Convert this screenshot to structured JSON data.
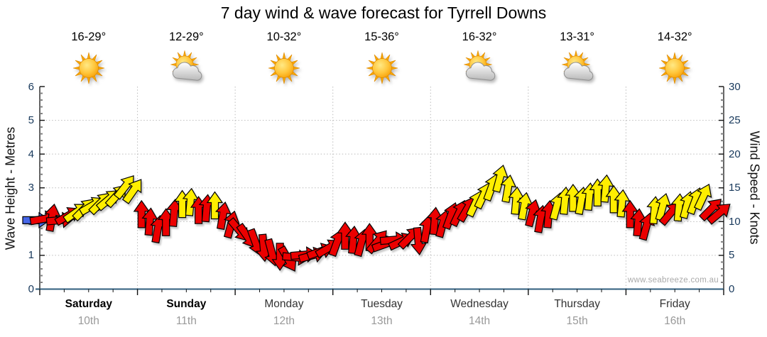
{
  "title": "7 day wind & wave forecast for Tyrrell Downs",
  "watermark": "www.seabreeze.com.au",
  "left_axis": {
    "title": "Wave Height - Metres",
    "ticks": [
      "6",
      "5",
      "4",
      "3",
      "2",
      "1",
      "0"
    ],
    "min": 0,
    "max": 6
  },
  "right_axis": {
    "title": "Wind Speed - Knots",
    "ticks": [
      "30",
      "25",
      "20",
      "15",
      "10",
      "5",
      "0"
    ],
    "min": 0,
    "max": 30
  },
  "days": [
    {
      "name": "Saturday",
      "date": "10th",
      "temp": "16-29°",
      "icon": "sun",
      "weekend": true
    },
    {
      "name": "Sunday",
      "date": "11th",
      "temp": "12-29°",
      "icon": "sun-cloud",
      "weekend": true
    },
    {
      "name": "Monday",
      "date": "12th",
      "temp": "10-32°",
      "icon": "sun",
      "weekend": false
    },
    {
      "name": "Tuesday",
      "date": "13th",
      "temp": "15-36°",
      "icon": "sun",
      "weekend": false
    },
    {
      "name": "Wednesday",
      "date": "14th",
      "temp": "16-32°",
      "icon": "sun-cloud",
      "weekend": false
    },
    {
      "name": "Thursday",
      "date": "15th",
      "temp": "13-31°",
      "icon": "sun-cloud",
      "weekend": false
    },
    {
      "name": "Friday",
      "date": "16th",
      "temp": "14-32°",
      "icon": "sun",
      "weekend": false
    }
  ],
  "colors": {
    "arrow_red": "#EB0000",
    "arrow_yellow": "#FFEE00",
    "arrow_blue": "#4666E8",
    "arrow_outline": "#000000",
    "bottom_axis": "#2F5E7E",
    "side_axis": "#222222",
    "tick_major": "#111111",
    "tick_minor": "#808080",
    "grid": "#BBBBBB",
    "axis_number": "#17385B",
    "day_name": "#333333",
    "day_date": "#999999",
    "watermark": "#AAAAAA"
  },
  "chart_data": {
    "type": "wind-arrow-forecast",
    "title": "7 day wind & wave forecast for Tyrrell Downs",
    "x_categories": [
      "Saturday 10th",
      "Sunday 11th",
      "Monday 12th",
      "Tuesday 13th",
      "Wednesday 14th",
      "Thursday 15th",
      "Friday 16th"
    ],
    "arrows_per_day": 12,
    "y_left_label": "Wave Height - Metres",
    "y_left_range": [
      0,
      6
    ],
    "y_right_label": "Wind Speed - Knots",
    "y_right_range": [
      0,
      30
    ],
    "grid": "dotted, horizontal every 5 knots, vertical at day boundaries",
    "legend": "arrow colour encodes wind strength: red = lighter, yellow = stronger; arrow rotation = wind direction (0 = toward top/N)",
    "arrows_knots_dir_color": [
      [
        10.4,
        80,
        "r"
      ],
      [
        10.6,
        10,
        "r"
      ],
      [
        10.2,
        85,
        "r"
      ],
      [
        10.9,
        60,
        "r"
      ],
      [
        11.4,
        55,
        "y"
      ],
      [
        11.9,
        45,
        "y"
      ],
      [
        12.4,
        60,
        "y"
      ],
      [
        12.8,
        45,
        "y"
      ],
      [
        13.3,
        50,
        "y"
      ],
      [
        13.9,
        42,
        "y"
      ],
      [
        15.2,
        38,
        "y"
      ],
      [
        14.6,
        35,
        "y"
      ],
      [
        11.1,
        0,
        "r"
      ],
      [
        10.0,
        5,
        "r"
      ],
      [
        8.9,
        10,
        "r"
      ],
      [
        9.9,
        0,
        "r"
      ],
      [
        11.3,
        5,
        "r"
      ],
      [
        12.6,
        0,
        "y"
      ],
      [
        12.9,
        5,
        "y"
      ],
      [
        11.7,
        0,
        "r"
      ],
      [
        12.0,
        5,
        "r"
      ],
      [
        12.4,
        0,
        "y"
      ],
      [
        10.9,
        10,
        "r"
      ],
      [
        9.6,
        15,
        "r"
      ],
      [
        8.7,
        140,
        "r"
      ],
      [
        7.8,
        145,
        "r"
      ],
      [
        6.9,
        160,
        "r"
      ],
      [
        6.1,
        175,
        "r"
      ],
      [
        5.4,
        165,
        "r"
      ],
      [
        4.8,
        180,
        "r"
      ],
      [
        4.4,
        150,
        "r"
      ],
      [
        4.7,
        95,
        "r"
      ],
      [
        5.1,
        85,
        "r"
      ],
      [
        5.0,
        75,
        "r"
      ],
      [
        5.6,
        70,
        "r"
      ],
      [
        6.1,
        60,
        "r"
      ],
      [
        6.9,
        20,
        "r"
      ],
      [
        7.9,
        0,
        "r"
      ],
      [
        7.3,
        5,
        "r"
      ],
      [
        6.9,
        15,
        "r"
      ],
      [
        7.7,
        0,
        "r"
      ],
      [
        7.1,
        40,
        "r"
      ],
      [
        6.7,
        70,
        "r"
      ],
      [
        7.3,
        85,
        "r"
      ],
      [
        7.1,
        65,
        "r"
      ],
      [
        7.7,
        45,
        "r"
      ],
      [
        7.1,
        175,
        "r"
      ],
      [
        8.9,
        10,
        "r"
      ],
      [
        10.1,
        5,
        "r"
      ],
      [
        9.7,
        15,
        "r"
      ],
      [
        10.9,
        20,
        "r"
      ],
      [
        11.3,
        25,
        "r"
      ],
      [
        11.9,
        30,
        "r"
      ],
      [
        12.7,
        25,
        "y"
      ],
      [
        13.9,
        25,
        "y"
      ],
      [
        15.1,
        20,
        "y"
      ],
      [
        16.4,
        15,
        "y"
      ],
      [
        14.9,
        10,
        "y"
      ],
      [
        13.1,
        5,
        "y"
      ],
      [
        12.3,
        10,
        "y"
      ],
      [
        11.3,
        15,
        "r"
      ],
      [
        10.4,
        10,
        "r"
      ],
      [
        11.1,
        5,
        "r"
      ],
      [
        12.3,
        15,
        "y"
      ],
      [
        13.1,
        5,
        "y"
      ],
      [
        13.5,
        0,
        "y"
      ],
      [
        13.1,
        10,
        "y"
      ],
      [
        13.7,
        5,
        "y"
      ],
      [
        14.3,
        0,
        "y"
      ],
      [
        14.9,
        5,
        "y"
      ],
      [
        13.3,
        0,
        "y"
      ],
      [
        12.7,
        5,
        "y"
      ],
      [
        11.1,
        0,
        "r"
      ],
      [
        9.9,
        5,
        "r"
      ],
      [
        9.3,
        15,
        "r"
      ],
      [
        11.7,
        5,
        "y"
      ],
      [
        12.2,
        15,
        "y"
      ],
      [
        11.3,
        40,
        "r"
      ],
      [
        12.1,
        5,
        "y"
      ],
      [
        12.5,
        15,
        "y"
      ],
      [
        13.1,
        20,
        "y"
      ],
      [
        13.7,
        25,
        "y"
      ],
      [
        11.9,
        45,
        "r"
      ],
      [
        11.3,
        50,
        "r"
      ]
    ],
    "observed_blue_fragment": {
      "knots": 10.2,
      "dir": 90,
      "color": "b"
    }
  }
}
